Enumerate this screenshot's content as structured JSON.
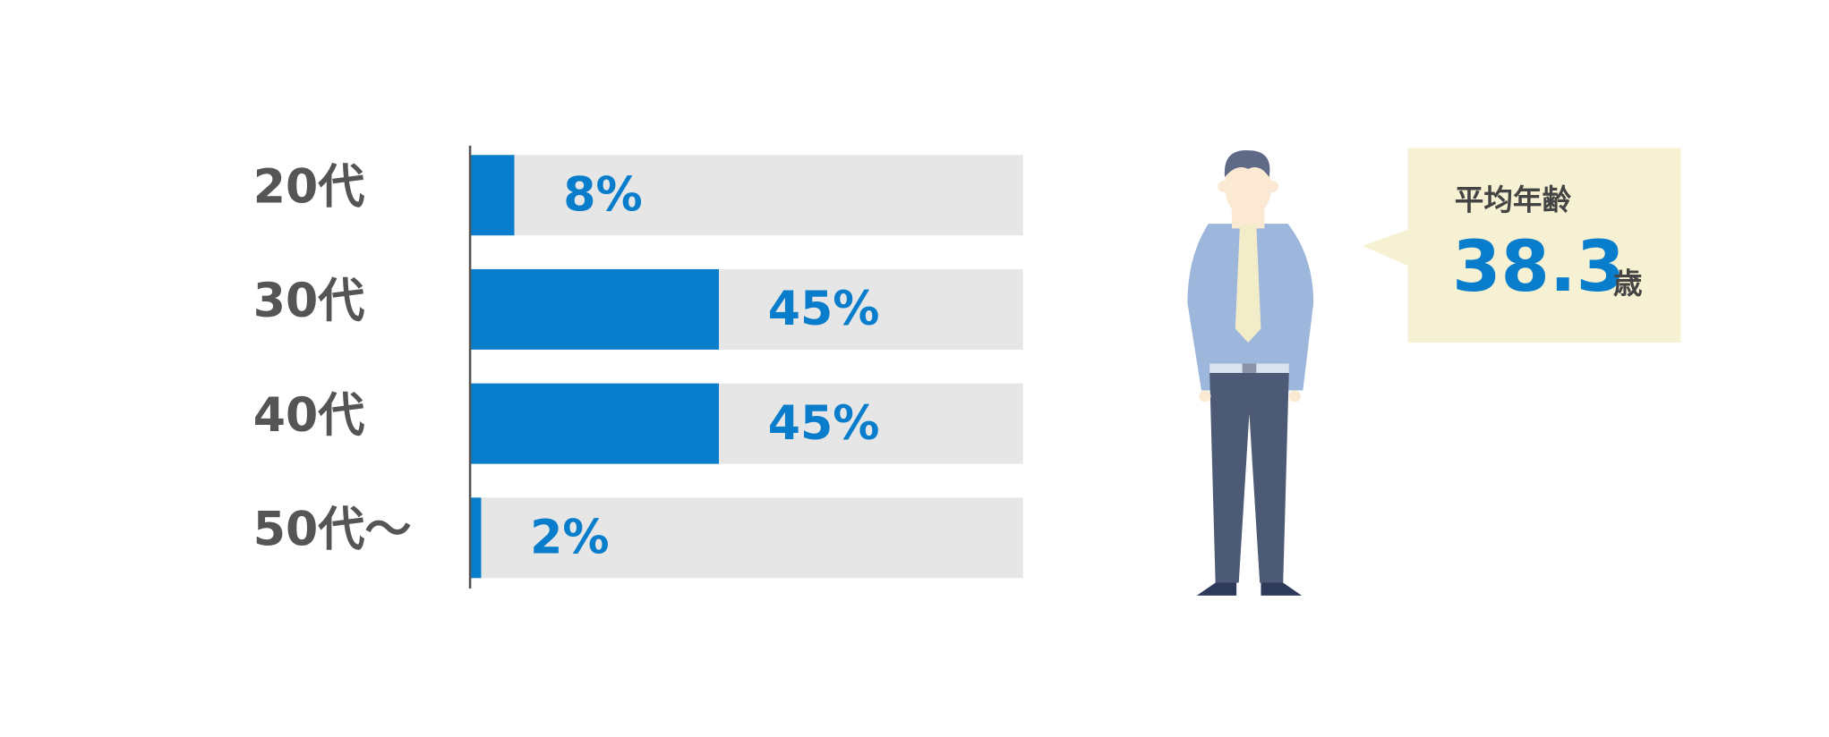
{
  "chart_data": {
    "type": "hbar",
    "categories": [
      "20代",
      "30代",
      "40代",
      "50代〜"
    ],
    "values": [
      8,
      45,
      45,
      2
    ],
    "value_labels": [
      "8%",
      "45%",
      "45%",
      "2%"
    ],
    "xlim": [
      0,
      100
    ],
    "color": "#077dcb",
    "track_color": "#e6e6e6",
    "annotation": {
      "label": "平均年齢",
      "value": 38.3,
      "unit": "歳"
    }
  }
}
